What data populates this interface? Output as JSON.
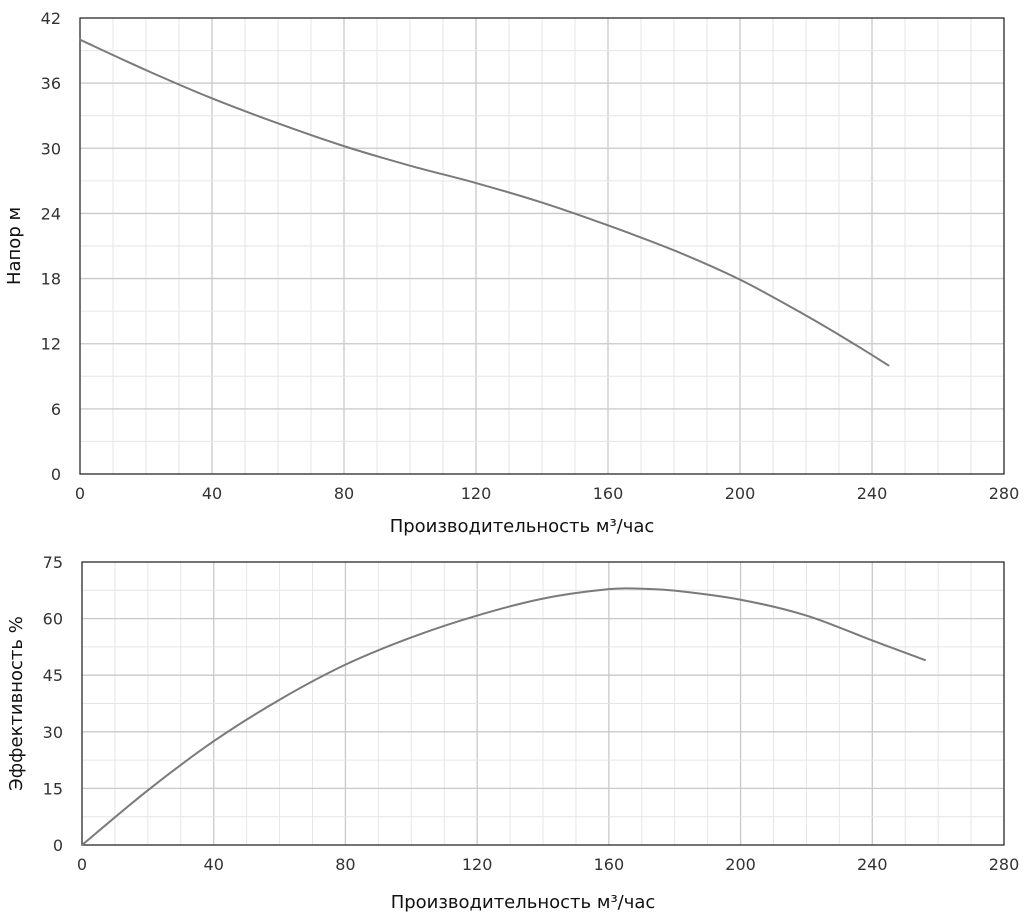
{
  "chart_data": [
    {
      "type": "line",
      "title": "",
      "xlabel": "Производительность м³/час",
      "ylabel": "Напор м",
      "xlim": [
        0,
        280
      ],
      "ylim": [
        0,
        42
      ],
      "xticks": [
        "0",
        "40",
        "80",
        "120",
        "160",
        "200",
        "240",
        "280"
      ],
      "yticks": [
        "0",
        "6",
        "12",
        "18",
        "24",
        "30",
        "36",
        "42"
      ],
      "grid": true,
      "series": [
        {
          "x": [
            0,
            20,
            40,
            60,
            80,
            100,
            120,
            140,
            160,
            180,
            200,
            220,
            235,
            245
          ],
          "y": [
            40.0,
            37.2,
            34.6,
            32.3,
            30.2,
            28.4,
            26.8,
            25.0,
            22.9,
            20.6,
            17.9,
            14.6,
            11.9,
            10.0
          ]
        }
      ]
    },
    {
      "type": "line",
      "title": "",
      "xlabel": "Производительность м³/час",
      "ylabel": "Эффективность %",
      "xlim": [
        0,
        280
      ],
      "ylim": [
        0,
        75
      ],
      "xticks": [
        "0",
        "40",
        "80",
        "120",
        "160",
        "200",
        "240",
        "280"
      ],
      "yticks": [
        "0",
        "15",
        "30",
        "45",
        "60",
        "75"
      ],
      "grid": true,
      "series": [
        {
          "x": [
            0,
            20,
            40,
            60,
            80,
            100,
            120,
            140,
            160,
            170,
            180,
            200,
            220,
            240,
            256
          ],
          "y": [
            0,
            14.5,
            27.5,
            38.5,
            47.8,
            55.0,
            60.8,
            65.3,
            67.8,
            67.9,
            67.4,
            65.0,
            60.8,
            54.2,
            49.0
          ]
        }
      ]
    }
  ],
  "style": {
    "line_color": "#7a7a7a",
    "grid_major": "#c9c9c9",
    "grid_minor": "#e6e6e6",
    "frame_color": "#222222"
  }
}
